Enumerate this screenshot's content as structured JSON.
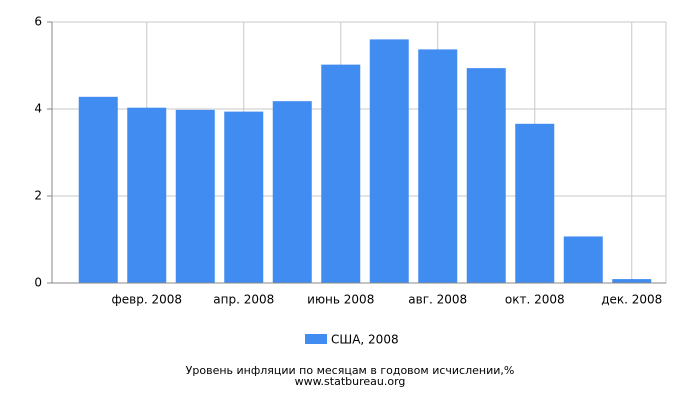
{
  "chart_data": {
    "type": "bar",
    "categories": [
      null,
      "февр. 2008",
      null,
      "апр. 2008",
      null,
      "июнь 2008",
      null,
      "авг. 2008",
      null,
      "окт. 2008",
      null,
      "дек. 2008"
    ],
    "series": [
      {
        "name": "США, 2008",
        "color": "#418cf0",
        "values": [
          4.28,
          4.03,
          3.98,
          3.94,
          4.18,
          5.02,
          5.6,
          5.37,
          4.94,
          3.66,
          1.07,
          0.09
        ]
      }
    ],
    "ylim": [
      0,
      6
    ],
    "yticks": [
      0,
      2,
      4,
      6
    ],
    "grid": true,
    "footer": [
      "Уровень инфляции по месяцам в годовом исчислении,%",
      "www.statbureau.org"
    ]
  }
}
